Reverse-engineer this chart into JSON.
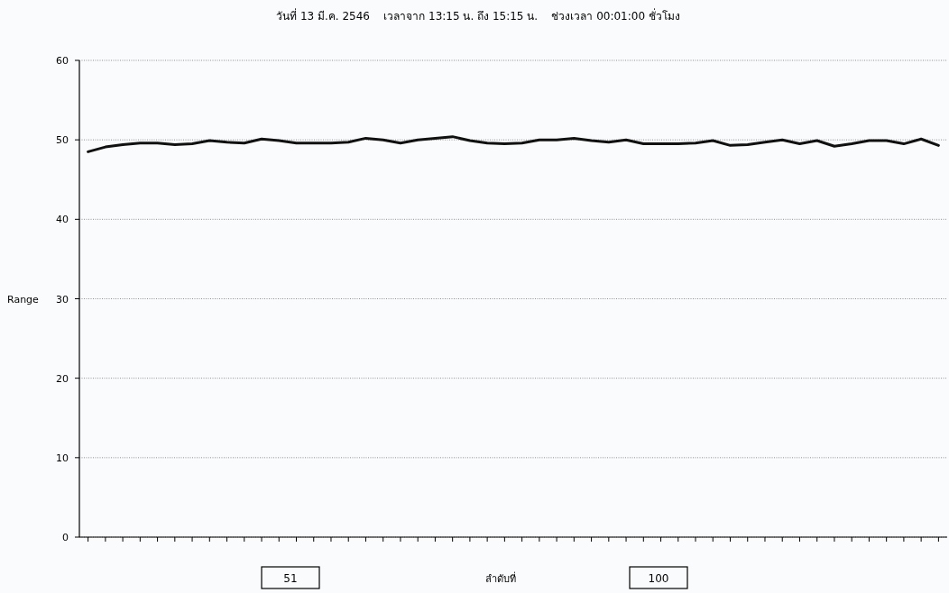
{
  "chart_data": {
    "type": "line",
    "title": "วันที่ 13 มี.ค. 2546    เวลาจาก 13:15 น. ถึง 15:15 น.    ช่วงเวลา 00:01:00 ชั่วโมง",
    "xlabel": "ลำดับที่",
    "ylabel": "Range",
    "annotations": [
      "51",
      "100"
    ],
    "categories": [
      null,
      null,
      null,
      null,
      null,
      null,
      null,
      null,
      null,
      null,
      null,
      null,
      null,
      null,
      null,
      null,
      null,
      null,
      null,
      null,
      null,
      null,
      null,
      null,
      null,
      null,
      null,
      null,
      null,
      null,
      null,
      null,
      null,
      null,
      null,
      null,
      null,
      null,
      null,
      null,
      null,
      null,
      null,
      null,
      null,
      null,
      null,
      null,
      null,
      null
    ],
    "series": [
      {
        "color": "#111111",
        "values": [
          48.5,
          49.1,
          49.4,
          49.6,
          49.6,
          49.4,
          49.5,
          49.9,
          49.7,
          49.6,
          50.1,
          49.9,
          49.6,
          49.6,
          49.6,
          49.7,
          50.2,
          50.0,
          49.6,
          50.0,
          50.2,
          50.4,
          49.9,
          49.6,
          49.5,
          49.6,
          50.0,
          50.0,
          50.2,
          49.9,
          49.7,
          50.0,
          49.5,
          49.5,
          49.5,
          49.6,
          49.9,
          49.3,
          49.4,
          49.7,
          50.0,
          49.5,
          49.9,
          49.2,
          49.5,
          49.9,
          49.9,
          49.5,
          50.1,
          49.3
        ]
      }
    ],
    "ylim": [
      0,
      60
    ],
    "yticks": [
      0,
      10,
      20,
      30,
      40,
      50,
      60
    ],
    "grid": "y",
    "tick_labels": "y"
  }
}
